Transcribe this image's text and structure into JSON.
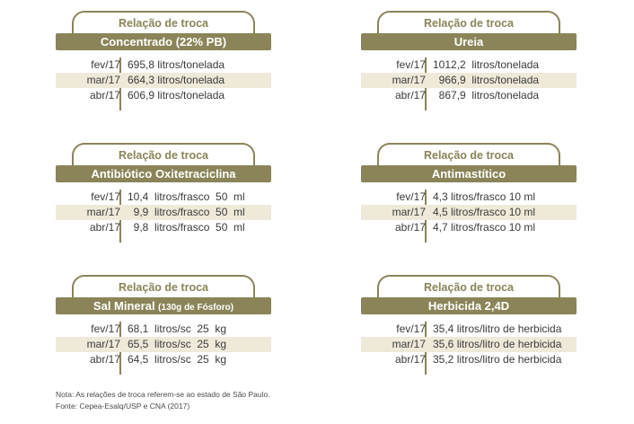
{
  "cards": [
    {
      "tab": "Relação de troca",
      "title": "Concentrado (22% PB)",
      "subtitle": "",
      "rows": [
        {
          "month": "fev/17",
          "value": "695,8 litros/tonelada"
        },
        {
          "month": "mar/17",
          "value": "664,3 litros/tonelada"
        },
        {
          "month": "abr/17",
          "value": "606,9 litros/tonelada"
        }
      ]
    },
    {
      "tab": "Relação de troca",
      "title": "Ureia",
      "subtitle": "",
      "rows": [
        {
          "month": "fev/17",
          "value": "1012,2  litros/tonelada"
        },
        {
          "month": "mar/17",
          "value": "  966,9  litros/tonelada"
        },
        {
          "month": "abr/17",
          "value": "  867,9  litros/tonelada"
        }
      ]
    },
    {
      "tab": "Relação de troca",
      "title": "Antibiótico Oxitetraciclina",
      "subtitle": "",
      "rows": [
        {
          "month": "fev/17",
          "value": "10,4  litros/frasco  50  ml"
        },
        {
          "month": "mar/17",
          "value": "  9,9  litros/frasco  50  ml"
        },
        {
          "month": "abr/17",
          "value": "  9,8  litros/frasco  50  ml"
        }
      ]
    },
    {
      "tab": "Relação de troca",
      "title": "Antimastítico",
      "subtitle": "",
      "rows": [
        {
          "month": "fev/17",
          "value": "4,3 litros/frasco 10 ml"
        },
        {
          "month": "mar/17",
          "value": "4,5 litros/frasco 10 ml"
        },
        {
          "month": "abr/17",
          "value": "4,7 litros/frasco 10 ml"
        }
      ]
    },
    {
      "tab": "Relação de troca",
      "title": "Sal Mineral ",
      "subtitle": "(130g de Fósforo)",
      "rows": [
        {
          "month": "fev/17",
          "value": "68,1  litros/sc  25  kg"
        },
        {
          "month": "mar/17",
          "value": "65,5  litros/sc  25  kg"
        },
        {
          "month": "abr/17",
          "value": "64,5  litros/sc  25  kg"
        }
      ]
    },
    {
      "tab": "Relação de troca",
      "title": "Herbicida 2,4D",
      "subtitle": "",
      "rows": [
        {
          "month": "fev/17",
          "value": "35,4 litros/litro de herbicida"
        },
        {
          "month": "mar/17",
          "value": "35,6 litros/litro de herbicida"
        },
        {
          "month": "abr/17",
          "value": "35,2 litros/litro de herbicida"
        }
      ]
    }
  ],
  "note": "Nota: As relações de troca referem-se ao estado de São Paulo.",
  "source": "Fonte: Cepea-Esalq/USP e CNA (2017)",
  "colors": {
    "accent": "#8a8458",
    "shade": "#efe9d9",
    "text": "#3a3a3a"
  }
}
